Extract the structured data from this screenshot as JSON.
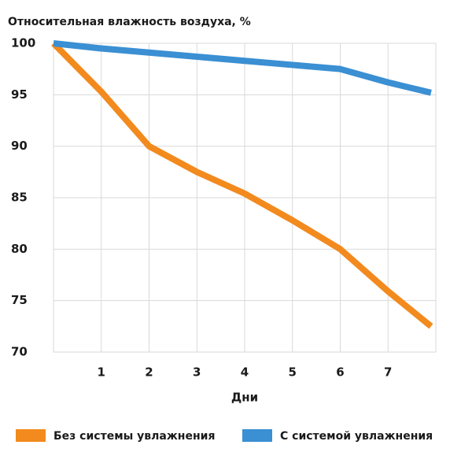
{
  "chart_data": {
    "type": "line",
    "title": "Относительная влажность воздуха, %",
    "x_label": "Дни",
    "x": [
      0,
      1,
      2,
      3,
      4,
      5,
      6,
      7,
      7.9
    ],
    "series": [
      {
        "name": "Без системы увлажнения",
        "color": "#f28a1e",
        "values": [
          100,
          95.3,
          90,
          87.5,
          85.4,
          82.8,
          80,
          75.9,
          72.5
        ]
      },
      {
        "name": "С системой увлажнения",
        "color": "#3b8fd3",
        "values": [
          100,
          99.5,
          99.1,
          98.7,
          98.3,
          97.9,
          97.5,
          96.2,
          95.2
        ]
      }
    ],
    "xlim": [
      0,
      8
    ],
    "xticks": [
      1,
      2,
      3,
      4,
      5,
      6,
      7
    ],
    "ylim": [
      70,
      100
    ],
    "yticks": [
      70,
      75,
      80,
      85,
      90,
      95,
      100
    ],
    "grid": true,
    "legend": "bottom"
  }
}
